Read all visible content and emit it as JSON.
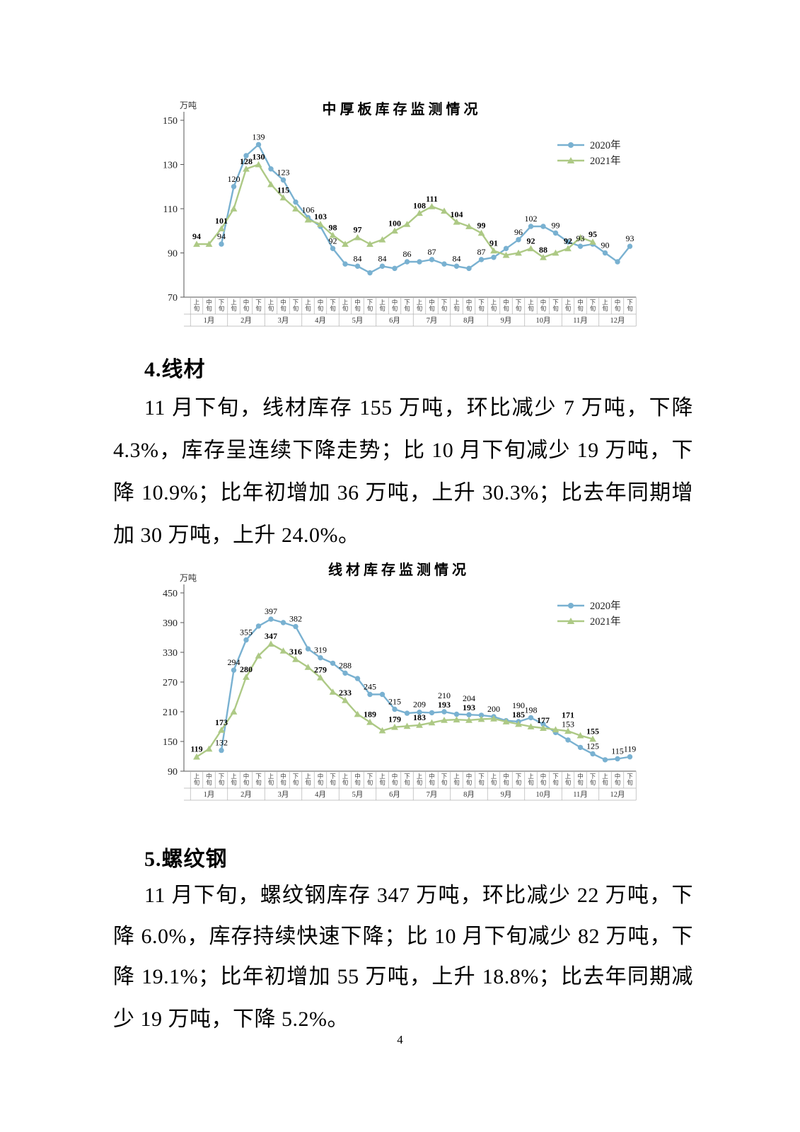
{
  "page": {
    "number": "4"
  },
  "sections": [
    {
      "heading": "4.线材",
      "lines": [
        "11 月下旬，线材库存 155 万吨，环比减少 7 万吨，下降",
        "4.3%，库存呈连续下降走势；比 10 月下旬减少 19 万吨，下",
        "降 10.9%；比年初增加 36 万吨，上升 30.3%；比去年同期增",
        "加 30 万吨，上升 24.0%。"
      ]
    },
    {
      "heading": "5.螺纹钢",
      "lines": [
        "11 月下旬，螺纹钢库存 347 万吨，环比减少 22 万吨，下",
        "降 6.0%，库存持续快速下降；比 10 月下旬减少 82 万吨，下",
        "降 19.1%；比年初增加 55 万吨，上升 18.8%；比去年同期减",
        "少 19 万吨，下降 5.2%。"
      ]
    }
  ],
  "chart_data": [
    {
      "type": "line",
      "title": "中厚板库存监测情况",
      "ylabel": "万吨",
      "ylim": [
        70,
        150
      ],
      "yticks": [
        150,
        130,
        110,
        90,
        70
      ],
      "grid": false,
      "legend_position": "top-right",
      "legend": [
        "2020年",
        "2021年"
      ],
      "months": [
        "1月",
        "2月",
        "3月",
        "4月",
        "5月",
        "6月",
        "7月",
        "8月",
        "9月",
        "10月",
        "11月",
        "12月"
      ],
      "periods": [
        "上旬",
        "中旬",
        "下旬"
      ],
      "categories": [
        "1月上旬",
        "1月中旬",
        "1月下旬",
        "2月上旬",
        "2月中旬",
        "2月下旬",
        "3月上旬",
        "3月中旬",
        "3月下旬",
        "4月上旬",
        "4月中旬",
        "4月下旬",
        "5月上旬",
        "5月中旬",
        "5月下旬",
        "6月上旬",
        "6月中旬",
        "6月下旬",
        "7月上旬",
        "7月中旬",
        "7月下旬",
        "8月上旬",
        "8月中旬",
        "8月下旬",
        "9月上旬",
        "9月中旬",
        "9月下旬",
        "10月上旬",
        "10月中旬",
        "10月下旬",
        "11月上旬",
        "11月中旬",
        "11月下旬",
        "12月上旬",
        "12月中旬",
        "12月下旬"
      ],
      "series": [
        {
          "name": "2020年",
          "color": "#79b1d1",
          "marker": "circle",
          "values": [
            null,
            null,
            94,
            120,
            134,
            139,
            128,
            123,
            113,
            106,
            102,
            92,
            85,
            84,
            81,
            84,
            83,
            86,
            86,
            87,
            85,
            84,
            83,
            87,
            88,
            92,
            96,
            102,
            102,
            99,
            95,
            93,
            94,
            90,
            86,
            93
          ]
        },
        {
          "name": "2021年",
          "color": "#adc985",
          "marker": "triangle",
          "values": [
            94,
            94,
            101,
            110,
            128,
            130,
            121,
            115,
            110,
            105,
            103,
            98,
            94,
            97,
            94,
            96,
            100,
            103,
            108,
            111,
            109,
            104,
            102,
            99,
            91,
            89,
            90,
            92,
            88,
            90,
            92,
            97,
            95
          ]
        }
      ],
      "point_labels": [
        {
          "series": "2020年",
          "points": [
            [
              2,
              94
            ],
            [
              3,
              120
            ],
            [
              5,
              139
            ],
            [
              7,
              123
            ],
            [
              9,
              106
            ],
            [
              11,
              92
            ],
            [
              13,
              84
            ],
            [
              15,
              84
            ],
            [
              17,
              86
            ],
            [
              19,
              87
            ],
            [
              21,
              84
            ],
            [
              23,
              87
            ],
            [
              26,
              96
            ],
            [
              27,
              102
            ],
            [
              29,
              99
            ],
            [
              31,
              93
            ],
            [
              33,
              90
            ],
            [
              35,
              93
            ]
          ]
        },
        {
          "series": "2021年",
          "points": [
            [
              0,
              94
            ],
            [
              2,
              101
            ],
            [
              4,
              128
            ],
            [
              5,
              130
            ],
            [
              7,
              115
            ],
            [
              10,
              103
            ],
            [
              11,
              98
            ],
            [
              13,
              97
            ],
            [
              16,
              100
            ],
            [
              18,
              108
            ],
            [
              19,
              111
            ],
            [
              21,
              104
            ],
            [
              23,
              99
            ],
            [
              24,
              91
            ],
            [
              27,
              92
            ],
            [
              28,
              88
            ],
            [
              30,
              92
            ],
            [
              32,
              95
            ]
          ]
        }
      ]
    },
    {
      "type": "line",
      "title": "线材库存监测情况",
      "ylabel": "万吨",
      "ylim": [
        90,
        450
      ],
      "yticks": [
        450,
        390,
        330,
        270,
        210,
        150,
        90
      ],
      "grid": false,
      "legend_position": "top-right",
      "legend": [
        "2020年",
        "2021年"
      ],
      "months": [
        "1月",
        "2月",
        "3月",
        "4月",
        "5月",
        "6月",
        "7月",
        "8月",
        "9月",
        "10月",
        "11月",
        "12月"
      ],
      "periods": [
        "上旬",
        "中旬",
        "下旬"
      ],
      "categories": [
        "1月上旬",
        "1月中旬",
        "1月下旬",
        "2月上旬",
        "2月中旬",
        "2月下旬",
        "3月上旬",
        "3月中旬",
        "3月下旬",
        "4月上旬",
        "4月中旬",
        "4月下旬",
        "5月上旬",
        "5月中旬",
        "5月下旬",
        "6月上旬",
        "6月中旬",
        "6月下旬",
        "7月上旬",
        "7月中旬",
        "7月下旬",
        "8月上旬",
        "8月中旬",
        "8月下旬",
        "9月上旬",
        "9月中旬",
        "9月下旬",
        "10月上旬",
        "10月中旬",
        "10月下旬",
        "11月上旬",
        "11月中旬",
        "11月下旬",
        "12月上旬",
        "12月中旬",
        "12月下旬"
      ],
      "series": [
        {
          "name": "2020年",
          "color": "#79b1d1",
          "marker": "circle",
          "values": [
            null,
            null,
            132,
            294,
            355,
            383,
            397,
            390,
            382,
            337,
            319,
            308,
            288,
            277,
            245,
            245,
            215,
            207,
            209,
            208,
            210,
            205,
            204,
            203,
            200,
            192,
            190,
            198,
            185,
            168,
            153,
            138,
            125,
            113,
            115,
            119
          ]
        },
        {
          "name": "2021年",
          "color": "#adc985",
          "marker": "triangle",
          "values": [
            119,
            135,
            173,
            210,
            280,
            323,
            347,
            333,
            316,
            300,
            279,
            250,
            233,
            205,
            189,
            172,
            179,
            181,
            183,
            188,
            193,
            194,
            193,
            195,
            196,
            190,
            185,
            180,
            177,
            174,
            171,
            162,
            155
          ]
        }
      ],
      "point_labels": [
        {
          "series": "2020年",
          "points": [
            [
              2,
              132
            ],
            [
              3,
              294
            ],
            [
              4,
              355
            ],
            [
              6,
              397
            ],
            [
              8,
              382
            ],
            [
              10,
              319
            ],
            [
              12,
              288
            ],
            [
              14,
              245
            ],
            [
              16,
              215
            ],
            [
              18,
              209
            ],
            [
              20,
              210
            ],
            [
              22,
              204
            ],
            [
              24,
              200
            ],
            [
              26,
              190
            ],
            [
              27,
              198
            ],
            [
              30,
              153
            ],
            [
              32,
              125
            ],
            [
              34,
              115
            ],
            [
              35,
              119
            ]
          ]
        },
        {
          "series": "2021年",
          "points": [
            [
              0,
              119
            ],
            [
              2,
              173
            ],
            [
              4,
              280
            ],
            [
              6,
              347
            ],
            [
              8,
              316
            ],
            [
              10,
              279
            ],
            [
              12,
              233
            ],
            [
              14,
              189
            ],
            [
              16,
              179
            ],
            [
              18,
              183
            ],
            [
              20,
              193
            ],
            [
              22,
              193
            ],
            [
              26,
              185
            ],
            [
              28,
              177
            ],
            [
              30,
              171
            ],
            [
              32,
              155
            ]
          ]
        }
      ]
    }
  ]
}
